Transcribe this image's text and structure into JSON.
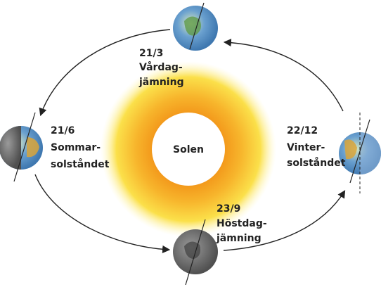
{
  "sun": {
    "label": "Solen"
  },
  "positions": [
    {
      "date": "21/3",
      "lines": [
        "Vårdag-",
        "jämning"
      ]
    },
    {
      "date": "21/6",
      "lines": [
        "Sommar-",
        "solståndet"
      ]
    },
    {
      "date": "22/12",
      "lines": [
        "Vinter-",
        "solståndet"
      ]
    },
    {
      "date": "23/9",
      "lines": [
        "Höstdag-",
        "jämning"
      ]
    }
  ]
}
